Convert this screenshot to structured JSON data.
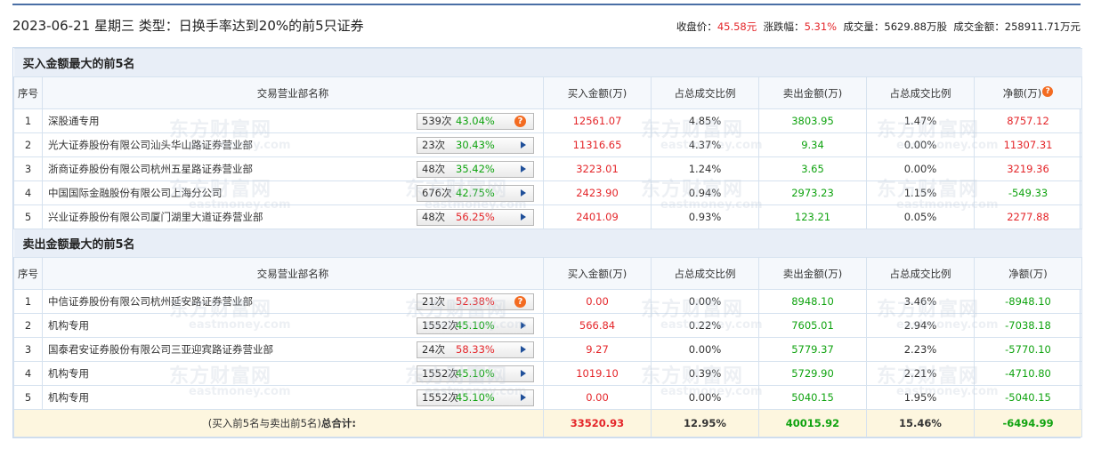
{
  "header": {
    "date": "2023-06-21",
    "weekday": "星期三",
    "type_label": "类型：",
    "type_value": "日换手率达到20%的前5只证券",
    "close_label": "收盘价：",
    "close_value": "45.58元",
    "change_label": "涨跌幅：",
    "change_value": "5.31%",
    "volume_label": "成交量：",
    "volume_value": "5629.88万股",
    "amount_label": "成交金额：",
    "amount_value": "258911.71万元"
  },
  "columns": {
    "no": "序号",
    "name": "交易营业部名称",
    "buy": "买入金额(万)",
    "buy_ratio": "占总成交比例",
    "sell": "卖出金额(万)",
    "sell_ratio": "占总成交比例",
    "net": "净额(万)"
  },
  "buy_section": {
    "title": "买入金额最大的前5名",
    "rows": [
      {
        "no": "1",
        "name": "深股通专用",
        "count": "539次",
        "pct": "43.04%",
        "buy": "12561.07",
        "buy_ratio": "4.85%",
        "sell": "3803.95",
        "sell_ratio": "1.47%",
        "net": "8757.12"
      },
      {
        "no": "2",
        "name": "光大证券股份有限公司汕头华山路证券营业部",
        "count": "23次",
        "pct": "30.43%",
        "buy": "11316.65",
        "buy_ratio": "4.37%",
        "sell": "9.34",
        "sell_ratio": "0.00%",
        "net": "11307.31"
      },
      {
        "no": "3",
        "name": "浙商证券股份有限公司杭州五星路证券营业部",
        "count": "48次",
        "pct": "35.42%",
        "buy": "3223.01",
        "buy_ratio": "1.24%",
        "sell": "3.65",
        "sell_ratio": "0.00%",
        "net": "3219.36"
      },
      {
        "no": "4",
        "name": "中国国际金融股份有限公司上海分公司",
        "count": "676次",
        "pct": "42.75%",
        "buy": "2423.90",
        "buy_ratio": "0.94%",
        "sell": "2973.23",
        "sell_ratio": "1.15%",
        "net": "-549.33"
      },
      {
        "no": "5",
        "name": "兴业证券股份有限公司厦门湖里大道证券营业部",
        "count": "48次",
        "pct": "56.25%",
        "buy": "2401.09",
        "buy_ratio": "0.93%",
        "sell": "123.21",
        "sell_ratio": "0.05%",
        "net": "2277.88"
      }
    ]
  },
  "sell_section": {
    "title": "卖出金额最大的前5名",
    "rows": [
      {
        "no": "1",
        "name": "中信证券股份有限公司杭州延安路证券营业部",
        "count": "21次",
        "pct": "52.38%",
        "buy": "0.00",
        "buy_ratio": "0.00%",
        "sell": "8948.10",
        "sell_ratio": "3.46%",
        "net": "-8948.10"
      },
      {
        "no": "2",
        "name": "机构专用",
        "count": "1552次",
        "pct": "45.10%",
        "buy": "566.84",
        "buy_ratio": "0.22%",
        "sell": "7605.01",
        "sell_ratio": "2.94%",
        "net": "-7038.18"
      },
      {
        "no": "3",
        "name": "国泰君安证券股份有限公司三亚迎宾路证券营业部",
        "count": "24次",
        "pct": "58.33%",
        "buy": "9.27",
        "buy_ratio": "0.00%",
        "sell": "5779.37",
        "sell_ratio": "2.23%",
        "net": "-5770.10"
      },
      {
        "no": "4",
        "name": "机构专用",
        "count": "1552次",
        "pct": "45.10%",
        "buy": "1019.10",
        "buy_ratio": "0.39%",
        "sell": "5729.90",
        "sell_ratio": "2.21%",
        "net": "-4710.80"
      },
      {
        "no": "5",
        "name": "机构专用",
        "count": "1552次",
        "pct": "45.10%",
        "buy": "0.00",
        "buy_ratio": "0.00%",
        "sell": "5040.15",
        "sell_ratio": "1.95%",
        "net": "-5040.15"
      }
    ]
  },
  "total": {
    "label_prefix": "(买入前5名与卖出前5名)",
    "label_bold": "总合计:",
    "buy": "33520.93",
    "buy_ratio": "12.95%",
    "sell": "40015.92",
    "sell_ratio": "15.46%",
    "net": "-6494.99"
  },
  "icons": {
    "help": "question-badge-icon",
    "expand": "triangle-right-icon"
  },
  "colors": {
    "up": "#e4262a",
    "down": "#10a310",
    "help_badge": "#f36b21",
    "section_bg": "#e8eef7",
    "total_bg": "#fdf6df"
  },
  "watermark": {
    "brand_cn": "东方财富网",
    "brand_en": "eastmoney.com"
  }
}
